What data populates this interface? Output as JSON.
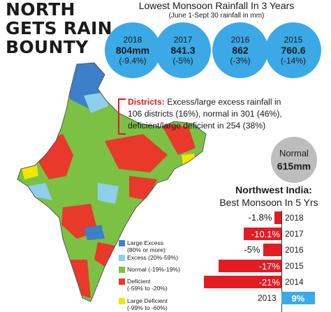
{
  "headline": [
    "NORTH",
    "GETS RAIN",
    "BOUNTY"
  ],
  "top": {
    "title": "Lowest Monsoon Rainfall In 3 Years",
    "subtitle": "(June 1-Sept 30 rainfall in mm)"
  },
  "circles": [
    {
      "year": "2018",
      "value": "804mm",
      "deviation": "(-9.4%)"
    },
    {
      "year": "2017",
      "value": "841.3",
      "deviation": "(-5%)"
    },
    {
      "year": "2016",
      "value": "862",
      "deviation": "(-3%)"
    },
    {
      "year": "2015",
      "value": "760.6",
      "deviation": "(-14%)"
    }
  ],
  "districts": {
    "label": "Districts:",
    "line1": " Excess/large excess rainfall in",
    "line2": "106 districts (16%), normal in 301 (46%),",
    "line3": "deficient/large deficient in 254 (38%)"
  },
  "normal": {
    "label": "Normal",
    "value": "615mm"
  },
  "northwest": {
    "title": "Northwest India:",
    "subtitle": "Best Monsoon In 5 Yrs",
    "rows": [
      {
        "year": "2018",
        "value": -1.8,
        "label": "-1.8%"
      },
      {
        "year": "2017",
        "value": -10.1,
        "label": "-10.1%"
      },
      {
        "year": "2016",
        "value": -5,
        "label": "-5%"
      },
      {
        "year": "2015",
        "value": -17,
        "label": "-17%"
      },
      {
        "year": "2014",
        "value": -21,
        "label": "-21%"
      },
      {
        "year": "2013",
        "value": 9,
        "label": "9%"
      }
    ]
  },
  "legend": [
    {
      "label": "Large Excess",
      "sub": "(80% or more)",
      "color": "#3d7fc8"
    },
    {
      "label": "Excess (20%-59%)",
      "sub": "",
      "color": "#8ecfee"
    },
    {
      "label": "Normal (-19%-19%)",
      "sub": "",
      "color": "#7cc144"
    },
    {
      "label": "Deficient",
      "sub": "(-59% to -20%)",
      "color": "#e8392a"
    },
    {
      "label": "Large Deficient",
      "sub": "(-99% to -60%)",
      "color": "#f2e600"
    }
  ],
  "colors": {
    "accent_red": "#e31b23",
    "accent_blue": "#3aa9e6",
    "neutral_grey": "#bdbdbd"
  }
}
